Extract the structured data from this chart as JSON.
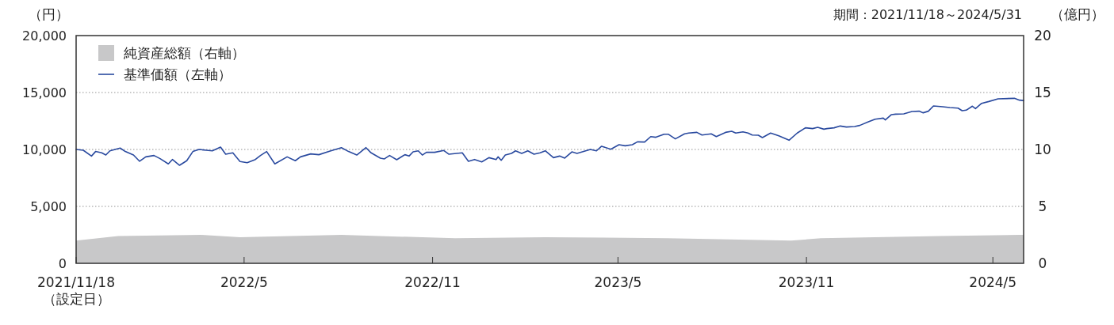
{
  "chart_data": {
    "type": "line",
    "ylabel": "（円）",
    "y2label": "（億円）",
    "annotations": [
      "期間：2021/11/18～2024/5/31"
    ],
    "xlim": [
      "2021-11-18",
      "2024-05-31"
    ],
    "xticks": [
      {
        "value": "2021-11-18",
        "label": "2021/11/18\n（設定日）"
      },
      {
        "value": "2022-05-01",
        "label": "2022/5"
      },
      {
        "value": "2022-11-01",
        "label": "2022/11"
      },
      {
        "value": "2023-05-01",
        "label": "2023/5"
      },
      {
        "value": "2023-11-01",
        "label": "2023/11"
      },
      {
        "value": "2024-05-01",
        "label": "2024/5"
      }
    ],
    "ylim": [
      0,
      20000
    ],
    "yticks": [
      {
        "value": 0,
        "label": "0"
      },
      {
        "value": 5000,
        "label": "5,000"
      },
      {
        "value": 10000,
        "label": "10,000"
      },
      {
        "value": 15000,
        "label": "15,000"
      },
      {
        "value": 20000,
        "label": "20,000"
      }
    ],
    "y2lim": [
      0,
      20
    ],
    "y2ticks": [
      0,
      5,
      10,
      15,
      20
    ],
    "grid": "y",
    "legend": "top left",
    "series": [
      {
        "name": "純資産総額（右軸）",
        "type": "area",
        "axis": "y2",
        "color": "#c8c8c9",
        "x": [
          "2021-11-18",
          "2021-12-29",
          "2022-03-20",
          "2022-04-27",
          "2022-08-04",
          "2022-11-23",
          "2023-02-19",
          "2023-06-18",
          "2023-10-17",
          "2023-11-15",
          "2024-03-10",
          "2024-05-27",
          "2024-05-31"
        ],
        "values": [
          2.0,
          2.4,
          2.5,
          2.3,
          2.5,
          2.2,
          2.3,
          2.2,
          2.0,
          2.2,
          2.4,
          2.5,
          2.5
        ]
      },
      {
        "name": "基準価額（左軸）",
        "color": "#2a4a9f",
        "x": [
          "2021-11-18",
          "2021-11-25",
          "2021-12-03",
          "2021-12-07",
          "2021-12-13",
          "2021-12-17",
          "2021-12-21",
          "2021-12-31",
          "2022-01-05",
          "2022-01-13",
          "2022-01-19",
          "2022-01-25",
          "2022-02-02",
          "2022-02-08",
          "2022-02-16",
          "2022-02-20",
          "2022-02-27",
          "2022-03-06",
          "2022-03-12",
          "2022-03-18",
          "2022-03-25",
          "2022-03-31",
          "2022-04-08",
          "2022-04-13",
          "2022-04-20",
          "2022-04-27",
          "2022-05-04",
          "2022-05-12",
          "2022-05-17",
          "2022-05-23",
          "2022-05-31",
          "2022-06-12",
          "2022-06-20",
          "2022-06-25",
          "2022-07-05",
          "2022-07-13",
          "2022-07-24",
          "2022-08-04",
          "2022-08-11",
          "2022-08-19",
          "2022-08-28",
          "2022-09-02",
          "2022-09-11",
          "2022-09-15",
          "2022-09-20",
          "2022-09-27",
          "2022-10-05",
          "2022-10-09",
          "2022-10-13",
          "2022-10-18",
          "2022-10-22",
          "2022-10-26",
          "2022-11-03",
          "2022-11-12",
          "2022-11-17",
          "2022-11-30",
          "2022-12-06",
          "2022-12-12",
          "2022-12-19",
          "2022-12-26",
          "2023-01-02",
          "2023-01-04",
          "2023-01-07",
          "2023-01-11",
          "2023-01-17",
          "2023-01-21",
          "2023-01-27",
          "2023-02-02",
          "2023-02-08",
          "2023-02-14",
          "2023-02-19",
          "2023-02-27",
          "2023-03-05",
          "2023-03-10",
          "2023-03-17",
          "2023-03-22",
          "2023-04-04",
          "2023-04-10",
          "2023-04-15",
          "2023-04-24",
          "2023-05-02",
          "2023-05-08",
          "2023-05-15",
          "2023-05-20",
          "2023-05-27",
          "2023-06-02",
          "2023-06-07",
          "2023-06-15",
          "2023-06-19",
          "2023-06-26",
          "2023-07-05",
          "2023-07-09",
          "2023-07-17",
          "2023-07-22",
          "2023-07-31",
          "2023-08-05",
          "2023-08-14",
          "2023-08-20",
          "2023-08-24",
          "2023-08-31",
          "2023-09-05",
          "2023-09-09",
          "2023-09-15",
          "2023-09-19",
          "2023-09-27",
          "2023-10-05",
          "2023-10-15",
          "2023-10-23",
          "2023-10-31",
          "2023-11-07",
          "2023-11-12",
          "2023-11-18",
          "2023-11-21",
          "2023-11-28",
          "2023-12-04",
          "2023-12-10",
          "2023-12-18",
          "2023-12-23",
          "2023-12-31",
          "2024-01-07",
          "2024-01-15",
          "2024-01-17",
          "2024-01-23",
          "2024-01-27",
          "2024-02-04",
          "2024-02-12",
          "2024-02-19",
          "2024-02-23",
          "2024-02-28",
          "2024-03-04",
          "2024-03-13",
          "2024-03-20",
          "2024-03-28",
          "2024-04-01",
          "2024-04-05",
          "2024-04-11",
          "2024-04-14",
          "2024-04-20",
          "2024-04-27",
          "2024-05-06",
          "2024-05-22",
          "2024-05-27",
          "2024-05-31"
        ],
        "values": [
          10000,
          9930,
          9420,
          9820,
          9700,
          9510,
          9880,
          10120,
          9820,
          9510,
          8960,
          9350,
          9470,
          9190,
          8730,
          9120,
          8610,
          9010,
          9820,
          10000,
          9930,
          9880,
          10210,
          9580,
          9700,
          8940,
          8840,
          9120,
          9470,
          9820,
          8730,
          9350,
          9010,
          9350,
          9610,
          9540,
          9860,
          10160,
          9820,
          9510,
          10160,
          9700,
          9240,
          9170,
          9470,
          9100,
          9540,
          9420,
          9790,
          9880,
          9510,
          9750,
          9750,
          9910,
          9580,
          9700,
          8960,
          9120,
          8910,
          9280,
          9120,
          9350,
          9050,
          9510,
          9650,
          9880,
          9650,
          9880,
          9580,
          9700,
          9880,
          9280,
          9420,
          9240,
          9790,
          9650,
          10000,
          9880,
          10280,
          10020,
          10420,
          10320,
          10420,
          10670,
          10650,
          11130,
          11070,
          11340,
          11340,
          10930,
          11370,
          11440,
          11500,
          11270,
          11370,
          11130,
          11500,
          11600,
          11440,
          11550,
          11440,
          11270,
          11250,
          11040,
          11440,
          11200,
          10810,
          11440,
          11900,
          11830,
          11940,
          11780,
          11830,
          11900,
          12060,
          11970,
          12010,
          12110,
          12410,
          12660,
          12750,
          12590,
          13060,
          13100,
          13130,
          13330,
          13360,
          13220,
          13360,
          13820,
          13750,
          13680,
          13630,
          13400,
          13450,
          13800,
          13590,
          14050,
          14210,
          14440,
          14490,
          14330,
          14300
        ]
      }
    ]
  }
}
